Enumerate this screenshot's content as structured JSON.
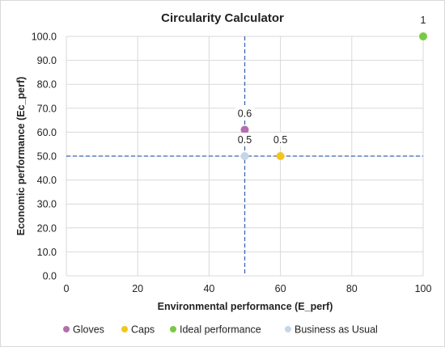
{
  "chart_data": {
    "type": "scatter",
    "title": "Circularity Calculator",
    "xlabel": "Environmental performance (E_perf)",
    "ylabel": "Economic performance (Ec_perf)",
    "xlim": [
      0,
      100
    ],
    "ylim": [
      0,
      100
    ],
    "x_ticks": [
      "0",
      "20",
      "40",
      "60",
      "80",
      "100"
    ],
    "y_ticks": [
      "0.0",
      "10.0",
      "20.0",
      "30.0",
      "40.0",
      "50.0",
      "60.0",
      "70.0",
      "80.0",
      "90.0",
      "100.0"
    ],
    "grid": true,
    "legend_position": "bottom",
    "reference_lines": [
      {
        "orientation": "vertical",
        "value": 50
      },
      {
        "orientation": "horizontal",
        "value": 50
      }
    ],
    "series": [
      {
        "name": "Gloves",
        "color": "#b36fae",
        "points": [
          {
            "x": 50,
            "y": 61,
            "label": "0.6"
          }
        ]
      },
      {
        "name": "Caps",
        "color": "#f5c518",
        "points": [
          {
            "x": 60,
            "y": 50,
            "label": "0.5"
          }
        ]
      },
      {
        "name": "Ideal performance",
        "color": "#7ac943",
        "points": [
          {
            "x": 100,
            "y": 100,
            "label": "1"
          }
        ]
      },
      {
        "name": "Business as Usual",
        "color": "#c5d6e6",
        "points": [
          {
            "x": 50,
            "y": 50,
            "label": "0.5"
          }
        ]
      }
    ],
    "reference_line_color": "#3b68b5"
  }
}
